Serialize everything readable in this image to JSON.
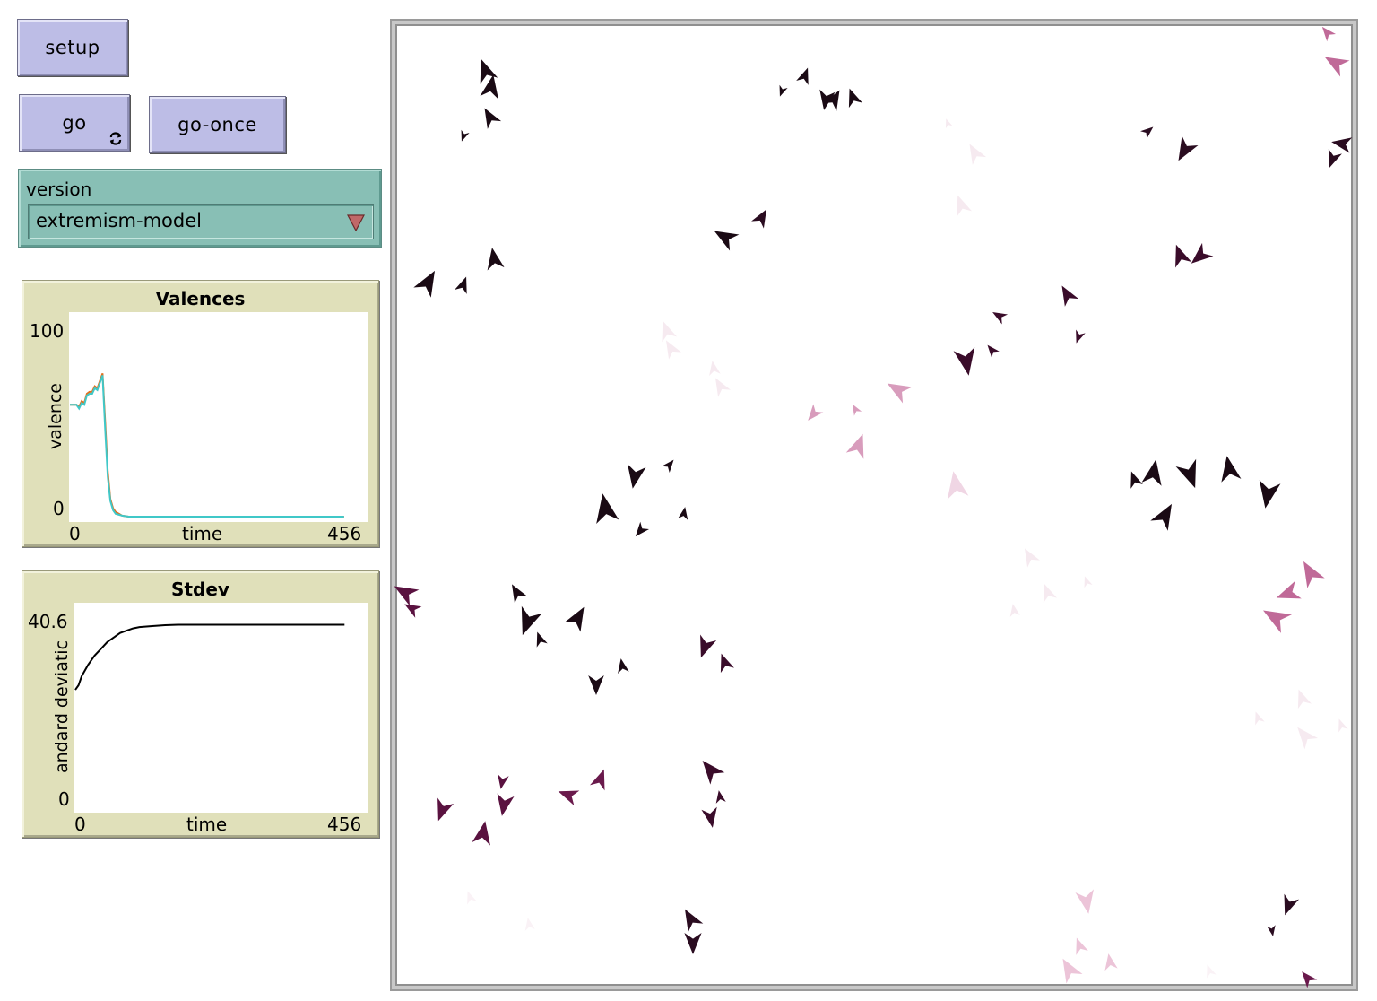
{
  "buttons": {
    "setup_label": "setup",
    "go_label": "go",
    "go_once_label": "go-once",
    "go_forever_icon": "forever-loop-icon"
  },
  "chooser": {
    "label": "version",
    "selected": "extremism-model",
    "dropdown_icon": "triangle-down-icon",
    "arrow_color": "#c06868"
  },
  "plots": {
    "valences": {
      "title": "Valences",
      "ylabel": "valence",
      "xlabel": "time",
      "xmin": "0",
      "xmax": "456",
      "ymin": "0",
      "ymax": "100"
    },
    "stdev": {
      "title": "Stdev",
      "ylabel": "andard deviatic",
      "xlabel": "time",
      "xmin": "0",
      "xmax": "456",
      "ymin": "0",
      "ymax": "40.6"
    }
  },
  "chart_data": [
    {
      "type": "line",
      "title": "Valences",
      "xlabel": "time",
      "ylabel": "valence",
      "xlim": [
        0,
        456
      ],
      "ylim": [
        0,
        100
      ],
      "series": [
        {
          "color": "#e07020",
          "x": [
            0,
            10,
            14,
            18,
            22,
            26,
            30,
            34,
            38,
            42,
            46,
            50,
            54,
            58,
            62,
            66,
            70,
            80,
            90,
            100,
            200,
            300,
            400,
            420
          ],
          "y": [
            61,
            61,
            60,
            63,
            62,
            67,
            68,
            68,
            71,
            70,
            74,
            78,
            52,
            25,
            10,
            5,
            3,
            1,
            0.5,
            0.5,
            0.5,
            0.5,
            0.5,
            0.5
          ]
        },
        {
          "color": "#40c8c8",
          "x": [
            0,
            10,
            14,
            18,
            22,
            26,
            30,
            34,
            38,
            42,
            46,
            50,
            54,
            58,
            62,
            66,
            70,
            80,
            90,
            100,
            200,
            300,
            400,
            420
          ],
          "y": [
            61,
            61,
            59,
            62,
            61,
            66,
            67,
            67,
            70,
            69,
            73,
            77,
            48,
            22,
            9,
            4,
            2,
            1,
            0.5,
            0.5,
            0.5,
            0.5,
            0.5,
            0.5
          ]
        }
      ]
    },
    {
      "type": "line",
      "title": "Stdev",
      "xlabel": "time",
      "ylabel": "standard deviation",
      "xlim": [
        0,
        456
      ],
      "ylim": [
        0,
        40.6
      ],
      "series": [
        {
          "color": "#000000",
          "x": [
            0,
            5,
            10,
            20,
            30,
            40,
            50,
            60,
            70,
            80,
            90,
            100,
            120,
            140,
            160,
            200,
            300,
            400,
            420
          ],
          "y": [
            26,
            27,
            29,
            31.5,
            33.5,
            35,
            36.5,
            37.5,
            38.5,
            39,
            39.5,
            39.8,
            40,
            40.2,
            40.3,
            40.3,
            40.3,
            40.3,
            40.3
          ]
        }
      ]
    }
  ],
  "world": {
    "agents": [
      [
        541,
        78,
        -20,
        26,
        "#1a0a14"
      ],
      [
        548,
        96,
        10,
        26,
        "#1a0a14"
      ],
      [
        546,
        130,
        -30,
        22,
        "#1a0a14"
      ],
      [
        517,
        152,
        200,
        12,
        "#1a0a14"
      ],
      [
        898,
        84,
        20,
        18,
        "#1a0a14"
      ],
      [
        872,
        102,
        200,
        12,
        "#1a0a14"
      ],
      [
        921,
        112,
        190,
        22,
        "#1a0a14"
      ],
      [
        931,
        110,
        30,
        22,
        "#1a0a14"
      ],
      [
        951,
        108,
        -20,
        20,
        "#1a0a14"
      ],
      [
        478,
        314,
        30,
        28,
        "#1a0a14"
      ],
      [
        517,
        317,
        20,
        18,
        "#1a0a14"
      ],
      [
        551,
        288,
        -10,
        24,
        "#1a0a14"
      ],
      [
        808,
        264,
        -60,
        26,
        "#1a0a14"
      ],
      [
        850,
        242,
        30,
        20,
        "#2a0c20"
      ],
      [
        1281,
        146,
        50,
        14,
        "#2a0c20"
      ],
      [
        1321,
        168,
        210,
        26,
        "#2a0c20"
      ],
      [
        1496,
        160,
        -80,
        22,
        "#2a0c20"
      ],
      [
        1486,
        178,
        200,
        20,
        "#2a0c20"
      ],
      [
        1316,
        284,
        -20,
        24,
        "#3a0c2a"
      ],
      [
        1338,
        286,
        230,
        24,
        "#3a0c2a"
      ],
      [
        1190,
        328,
        -30,
        22,
        "#3a0c2a"
      ],
      [
        1114,
        352,
        -60,
        16,
        "#3a0c2a"
      ],
      [
        1106,
        390,
        -40,
        14,
        "#3a0c2a"
      ],
      [
        1203,
        376,
        200,
        14,
        "#3a0c2a"
      ],
      [
        1078,
        404,
        170,
        30,
        "#3a0c2a"
      ],
      [
        1265,
        534,
        -20,
        18,
        "#1a0a14"
      ],
      [
        1287,
        526,
        10,
        28,
        "#1a0a14"
      ],
      [
        1328,
        530,
        160,
        30,
        "#1a0a14"
      ],
      [
        1371,
        522,
        -10,
        28,
        "#1a0a14"
      ],
      [
        1414,
        552,
        190,
        30,
        "#1a0a14"
      ],
      [
        1300,
        574,
        30,
        28,
        "#1a0a14"
      ],
      [
        708,
        532,
        190,
        26,
        "#1a0a14"
      ],
      [
        747,
        518,
        40,
        14,
        "#1a0a14"
      ],
      [
        675,
        566,
        -10,
        32,
        "#1a0a14"
      ],
      [
        763,
        572,
        10,
        14,
        "#1a0a14"
      ],
      [
        714,
        592,
        220,
        16,
        "#1a0a14"
      ],
      [
        576,
        660,
        -30,
        20,
        "#1a0a14"
      ],
      [
        588,
        694,
        200,
        30,
        "#1a0a14"
      ],
      [
        602,
        712,
        -20,
        16,
        "#1a0a14"
      ],
      [
        645,
        688,
        30,
        26,
        "#1a0a14"
      ],
      [
        694,
        742,
        -10,
        16,
        "#1a0a14"
      ],
      [
        665,
        764,
        180,
        22,
        "#1a0a14"
      ],
      [
        786,
        722,
        200,
        24,
        "#3a0c2a"
      ],
      [
        808,
        738,
        -20,
        20,
        "#3a0c2a"
      ],
      [
        451,
        660,
        -60,
        26,
        "#5a1240"
      ],
      [
        459,
        678,
        -60,
        18,
        "#5a1240"
      ],
      [
        493,
        904,
        200,
        24,
        "#5a1240"
      ],
      [
        560,
        872,
        190,
        16,
        "#5a1240"
      ],
      [
        562,
        898,
        190,
        24,
        "#5a1240"
      ],
      [
        539,
        928,
        10,
        26,
        "#5a1240"
      ],
      [
        633,
        886,
        -70,
        22,
        "#6a1a4c"
      ],
      [
        670,
        868,
        20,
        22,
        "#6a1a4c"
      ],
      [
        792,
        858,
        -40,
        26,
        "#3a0c2a"
      ],
      [
        803,
        888,
        -10,
        14,
        "#3a0c2a"
      ],
      [
        793,
        912,
        170,
        22,
        "#3a0c2a"
      ],
      [
        770,
        1024,
        -30,
        24,
        "#2a0c20"
      ],
      [
        773,
        1052,
        180,
        24,
        "#2a0c20"
      ],
      [
        1437,
        1010,
        200,
        22,
        "#2a0c20"
      ],
      [
        1419,
        1038,
        170,
        12,
        "#2a0c20"
      ],
      [
        1458,
        1090,
        -40,
        18,
        "#6a1a4c"
      ],
      [
        1489,
        70,
        -60,
        26,
        "#c06a98"
      ],
      [
        1480,
        36,
        -40,
        16,
        "#c06a98"
      ],
      [
        1001,
        434,
        -60,
        26,
        "#d89cbc"
      ],
      [
        907,
        462,
        220,
        18,
        "#d89cbc"
      ],
      [
        954,
        456,
        -30,
        12,
        "#d89cbc"
      ],
      [
        958,
        496,
        20,
        26,
        "#d89cbc"
      ],
      [
        1066,
        540,
        -10,
        30,
        "#f0d6e4"
      ],
      [
        1436,
        662,
        250,
        26,
        "#c06a98"
      ],
      [
        1461,
        638,
        -30,
        28,
        "#c06a98"
      ],
      [
        1422,
        688,
        -60,
        30,
        "#c06a98"
      ],
      [
        743,
        368,
        -20,
        22,
        "#f6eaf0"
      ],
      [
        748,
        388,
        -30,
        20,
        "#f6eaf0"
      ],
      [
        796,
        410,
        -10,
        16,
        "#f6eaf0"
      ],
      [
        803,
        430,
        -30,
        20,
        "#f6eaf0"
      ],
      [
        1087,
        170,
        -30,
        22,
        "#f6eaf0"
      ],
      [
        1072,
        228,
        -20,
        22,
        "#f6eaf0"
      ],
      [
        1057,
        137,
        -20,
        10,
        "#f6eaf0"
      ],
      [
        1148,
        620,
        -30,
        20,
        "#f6eaf0"
      ],
      [
        1168,
        660,
        -20,
        20,
        "#f6eaf0"
      ],
      [
        1131,
        680,
        -10,
        14,
        "#f6eaf0"
      ],
      [
        1212,
        648,
        -20,
        12,
        "#f6eaf0"
      ],
      [
        1452,
        778,
        -20,
        20,
        "#f6eaf0"
      ],
      [
        1403,
        800,
        -20,
        14,
        "#f6eaf0"
      ],
      [
        1455,
        820,
        -40,
        24,
        "#f6eaf0"
      ],
      [
        1496,
        808,
        -20,
        14,
        "#f6eaf0"
      ],
      [
        1212,
        1006,
        170,
        26,
        "#ecc4d8"
      ],
      [
        1204,
        1054,
        -20,
        18,
        "#ecc4d8"
      ],
      [
        1192,
        1080,
        -30,
        26,
        "#ecc4d8"
      ],
      [
        1238,
        1072,
        -10,
        18,
        "#ecc4d8"
      ],
      [
        524,
        1000,
        -20,
        14,
        "#faf2f6"
      ],
      [
        590,
        1030,
        -10,
        14,
        "#faf2f6"
      ],
      [
        1349,
        1082,
        -20,
        14,
        "#faf2f6"
      ]
    ]
  }
}
